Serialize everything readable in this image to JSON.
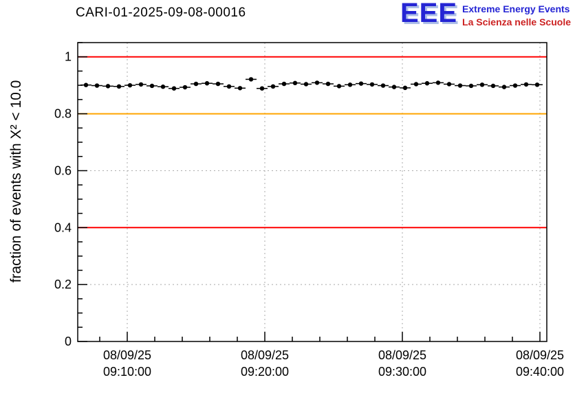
{
  "logo": {
    "acronym": "EEE",
    "line1": "Extreme Energy Events",
    "line2": "La Scienza nelle Scuole",
    "blue": "#2525d4",
    "red": "#cc2222"
  },
  "chart_data": {
    "type": "scatter",
    "title": "CARI-01-2025-09-08-00016",
    "xlabel": "",
    "ylabel": "fraction of events with X² < 10.0",
    "ylim": [
      0,
      1.05
    ],
    "x_unit": "seconds after 09:00:00 on 08/09/25",
    "xlim_seconds": [
      384,
      2430
    ],
    "grid": "dotted",
    "legend": "none",
    "y_ticks": [
      {
        "v": 0,
        "label": "0"
      },
      {
        "v": 0.2,
        "label": "0.2"
      },
      {
        "v": 0.4,
        "label": "0.4"
      },
      {
        "v": 0.6,
        "label": "0.6"
      },
      {
        "v": 0.8,
        "label": "0.8"
      },
      {
        "v": 1,
        "label": "1"
      }
    ],
    "x_ticks": [
      {
        "t": 600,
        "date": "08/09/25",
        "time": "09:10:00"
      },
      {
        "t": 1200,
        "date": "08/09/25",
        "time": "09:20:00"
      },
      {
        "t": 1800,
        "date": "08/09/25",
        "time": "09:30:00"
      },
      {
        "t": 2400,
        "date": "08/09/25",
        "time": "09:40:00"
      }
    ],
    "reference_lines": [
      {
        "y": 1.0,
        "color": "#ff0000",
        "name": "upper-limit-line"
      },
      {
        "y": 0.8,
        "color": "#ffa500",
        "name": "warning-line"
      },
      {
        "y": 0.4,
        "color": "#ff0000",
        "name": "lower-limit-line"
      }
    ],
    "series": [
      {
        "name": "fraction of good chi2 events",
        "marker": "filled-circle",
        "color": "#000000",
        "x_err_seconds": 24,
        "y_err": 0.006,
        "x_seconds": [
          420,
          468,
          516,
          564,
          612,
          660,
          708,
          756,
          804,
          852,
          900,
          948,
          996,
          1044,
          1092,
          1140,
          1188,
          1236,
          1284,
          1332,
          1380,
          1428,
          1476,
          1524,
          1572,
          1620,
          1668,
          1716,
          1764,
          1812,
          1860,
          1908,
          1956,
          2004,
          2052,
          2100,
          2148,
          2196,
          2244,
          2292,
          2340,
          2388
        ],
        "y": [
          0.901,
          0.899,
          0.897,
          0.896,
          0.9,
          0.903,
          0.898,
          0.895,
          0.889,
          0.893,
          0.905,
          0.907,
          0.905,
          0.896,
          0.89,
          0.921,
          0.889,
          0.896,
          0.905,
          0.908,
          0.904,
          0.909,
          0.905,
          0.897,
          0.902,
          0.906,
          0.903,
          0.899,
          0.894,
          0.891,
          0.904,
          0.907,
          0.909,
          0.904,
          0.899,
          0.898,
          0.902,
          0.898,
          0.894,
          0.899,
          0.903,
          0.902
        ]
      }
    ],
    "frame_color": "#000000",
    "grid_color": "#a8a8a8",
    "tick_label_color": "#000000"
  }
}
